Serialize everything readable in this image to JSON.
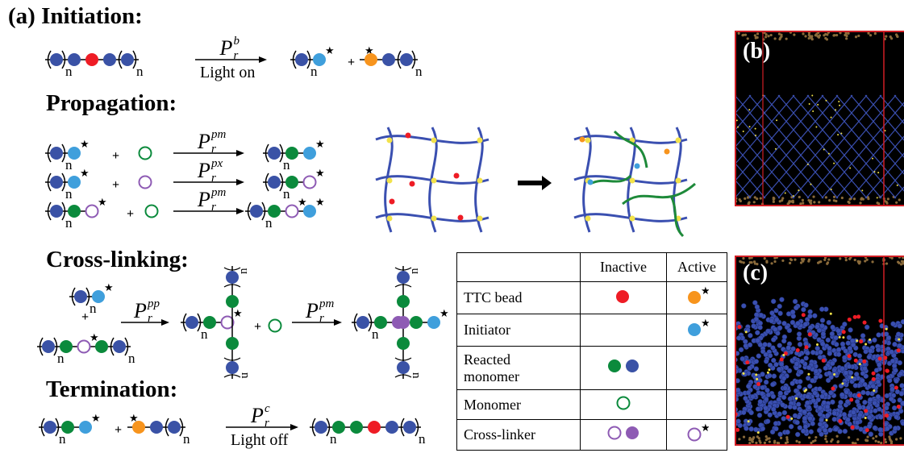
{
  "headings": {
    "panel_a": "(a)",
    "initiation": "Initiation:",
    "propagation": "Propagation:",
    "crosslinking": "Cross-linking:",
    "termination": "Termination:"
  },
  "arrows": {
    "p_symbol": "P",
    "r_sub": "r",
    "sup_b": "b",
    "sup_pm": "pm",
    "sup_px": "px",
    "sup_pp": "pp",
    "sup_c": "c",
    "light_on": "Light on",
    "light_off": "Light off"
  },
  "glyphs": {
    "n": "n",
    "star": "★",
    "plus": "+"
  },
  "colors": {
    "backbone": "#3a52a6",
    "ttc": "#ee1c25",
    "ttc_active": "#f7941d",
    "initiator": "#3f9fdc",
    "monomer": "#0b8a3c",
    "crosslinker": "#8e5bb4",
    "network": "#3a4fb0",
    "node": "#f2e24a",
    "chain": "#1e8a3a",
    "sim_bg": "#000000",
    "sim_frame": "#d01e24",
    "sim_wall": "#8a6a3a"
  },
  "table": {
    "header": [
      "",
      "Inactive",
      "Active"
    ],
    "rows": [
      {
        "label": "TTC bead"
      },
      {
        "label": "Initiator"
      },
      {
        "label_line1": "Reacted",
        "label_line2": "monomer"
      },
      {
        "label": "Monomer"
      },
      {
        "label": "Cross-linker"
      }
    ]
  },
  "panels": {
    "b": "(b)",
    "c": "(c)"
  }
}
